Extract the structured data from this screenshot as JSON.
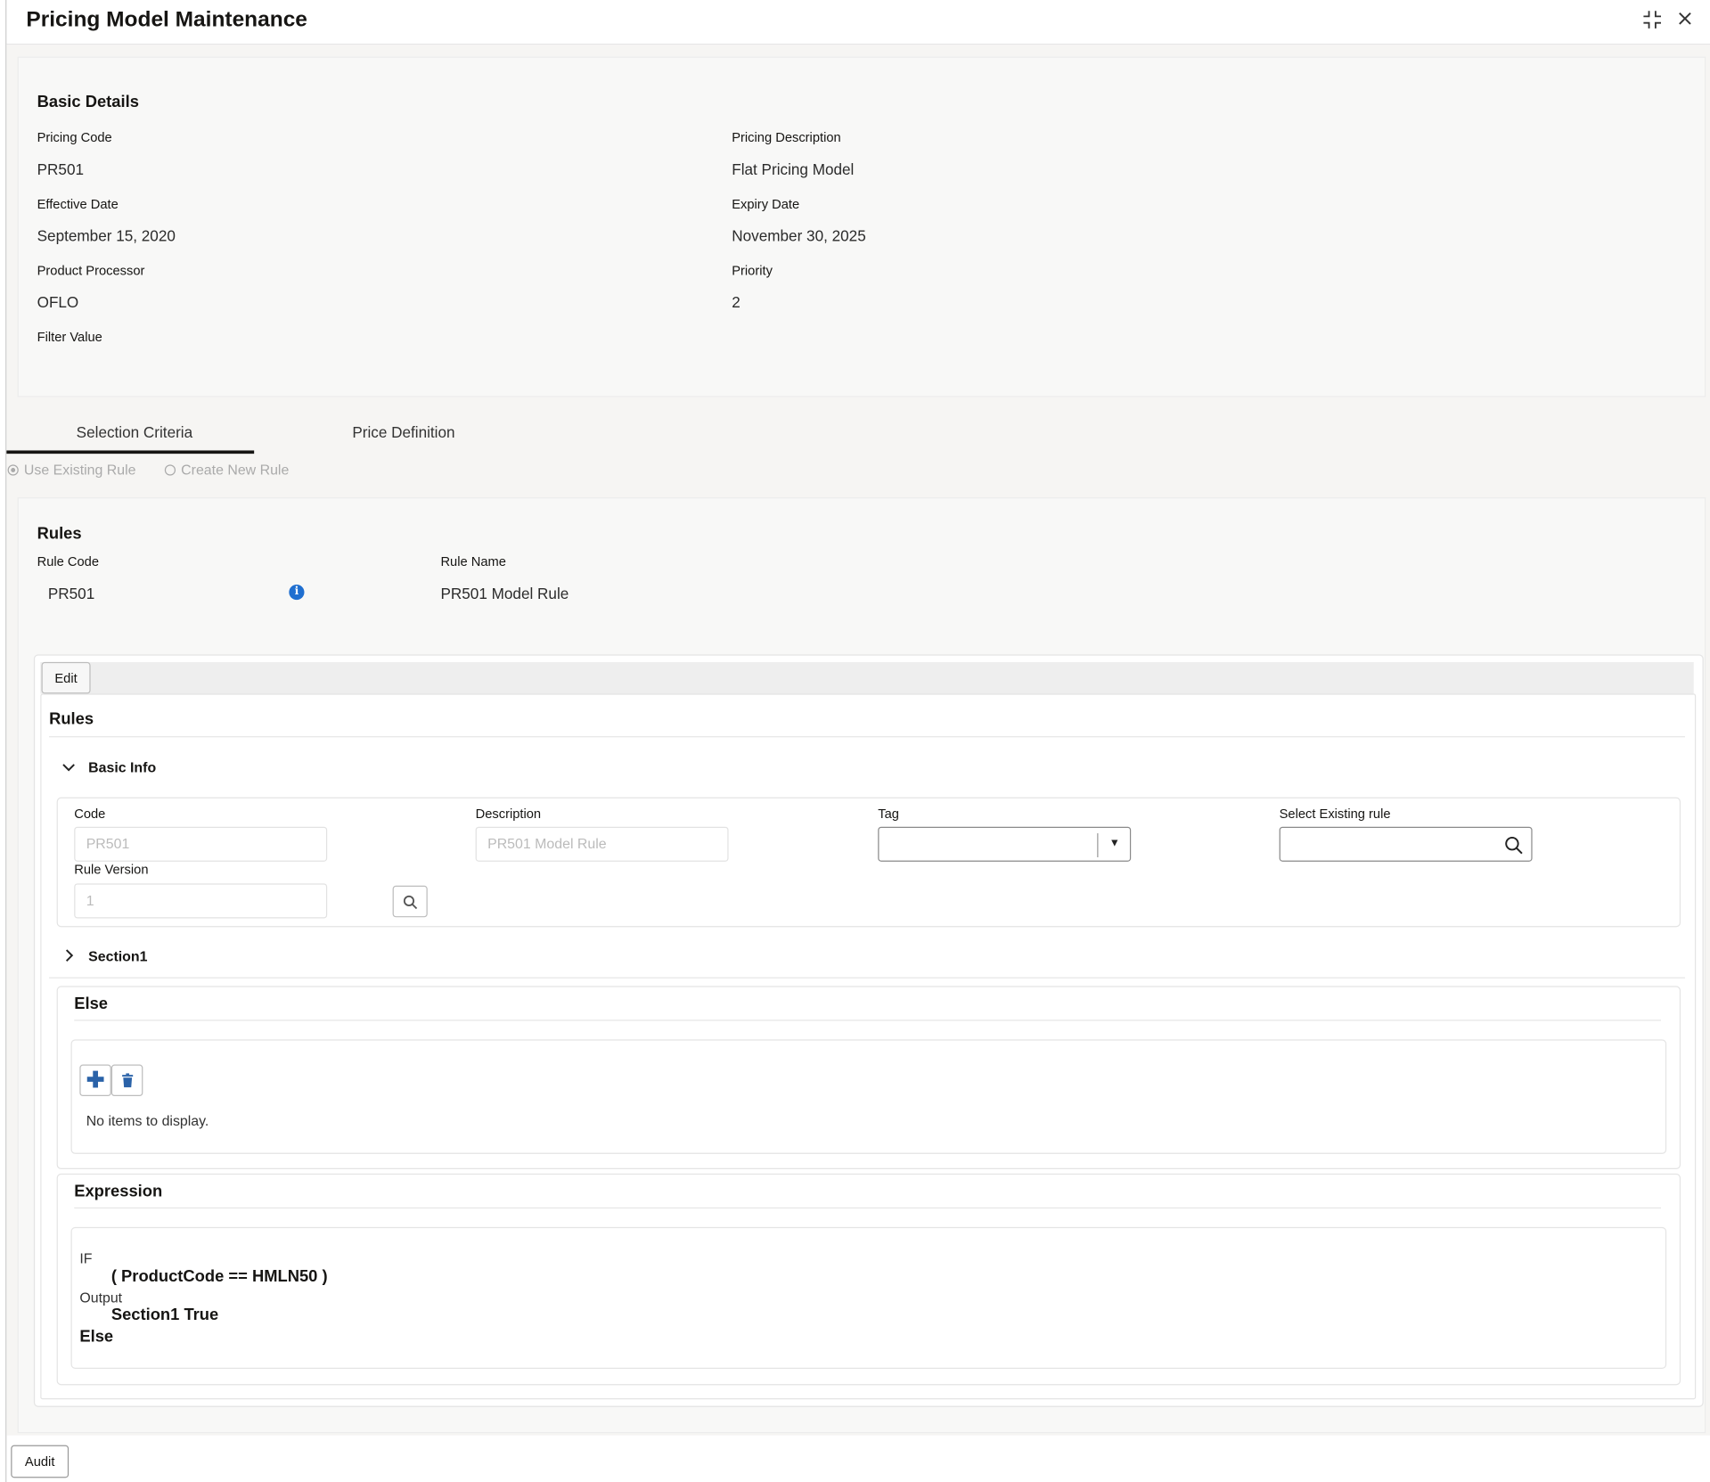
{
  "header": {
    "title": "Pricing Model Maintenance",
    "icons": [
      "minimize-icon",
      "close-icon"
    ]
  },
  "basic_details": {
    "title": "Basic Details",
    "fields": [
      {
        "label": "Pricing Code",
        "value": "PR501"
      },
      {
        "label": "Pricing Description",
        "value": "Flat Pricing Model"
      },
      {
        "label": "Effective Date",
        "value": "September 15, 2020"
      },
      {
        "label": "Expiry Date",
        "value": "November 30, 2025"
      },
      {
        "label": "Product Processor",
        "value": "OFLO"
      },
      {
        "label": "Priority",
        "value": "2"
      },
      {
        "label": "Filter Value",
        "value": ""
      }
    ]
  },
  "tabs": [
    {
      "label": "Selection Criteria",
      "active": true
    },
    {
      "label": "Price Definition",
      "active": false
    }
  ],
  "radios": [
    {
      "label": "Use Existing Rule",
      "selected": true
    },
    {
      "label": "Create New Rule",
      "selected": false
    }
  ],
  "rules": {
    "title": "Rules",
    "rule_code_label": "Rule Code",
    "rule_code": "PR501",
    "rule_name_label": "Rule Name",
    "rule_name": "PR501 Model Rule",
    "info_color": "#1f6fd0"
  },
  "editor": {
    "edit_label": "Edit",
    "title": "Rules",
    "basic_info": {
      "title": "Basic Info",
      "code_label": "Code",
      "code_value": "PR501",
      "description_label": "Description",
      "description_value": "PR501 Model Rule",
      "tag_label": "Tag",
      "tag_value": "",
      "select_existing_label": "Select Existing rule",
      "select_existing_value": "",
      "rule_version_label": "Rule Version",
      "rule_version_value": "1"
    },
    "section1": {
      "title": "Section1"
    },
    "else": {
      "title": "Else",
      "empty_text": "No items to display.",
      "accent": "#2a62a8"
    },
    "expression": {
      "title": "Expression",
      "if_label": "IF",
      "condition": "( ProductCode == HMLN50 )",
      "output_label": "Output",
      "output": "Section1 True",
      "else_label": "Else"
    }
  },
  "footer": {
    "audit_label": "Audit"
  }
}
